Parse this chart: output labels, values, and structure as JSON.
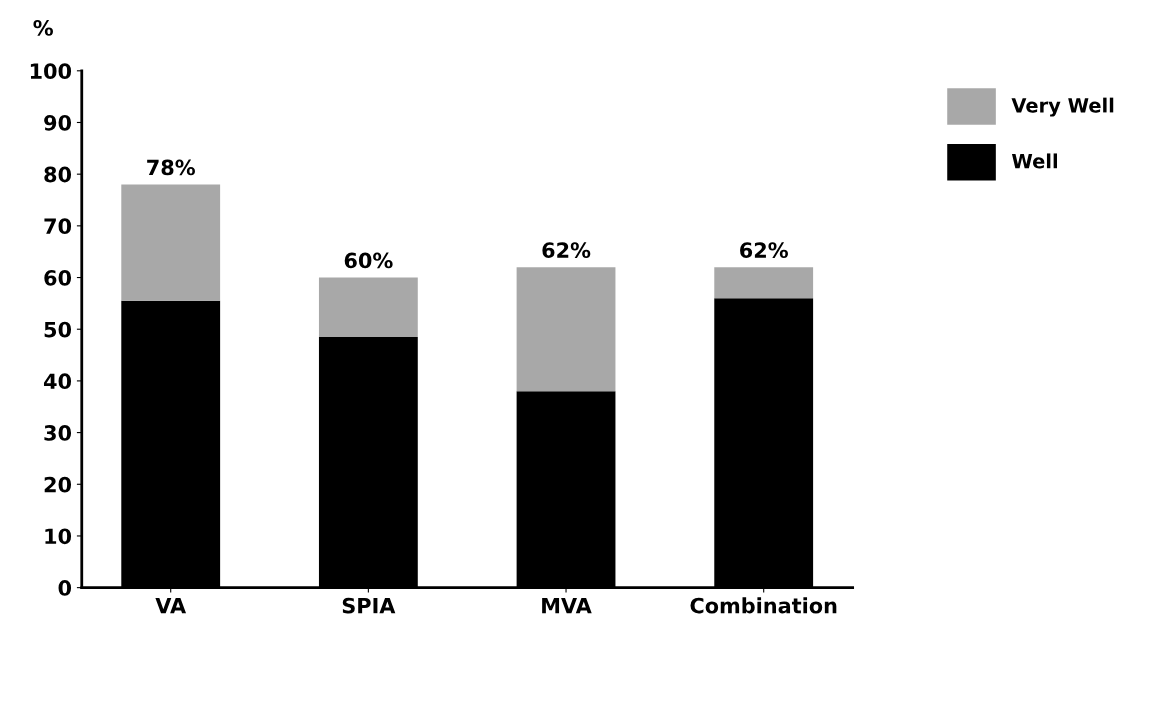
{
  "chart_data": {
    "type": "bar",
    "stacked": true,
    "ylabel": "%",
    "categories": [
      "VA",
      "SPIA",
      "MVA",
      "Combination"
    ],
    "series": [
      {
        "name": "Well",
        "color": "#000000",
        "values": [
          55.5,
          48.5,
          38,
          56
        ]
      },
      {
        "name": "Very Well",
        "color": "#a8a8a8",
        "values": [
          22.5,
          11.5,
          24,
          6
        ]
      }
    ],
    "totals": [
      "78%",
      "60%",
      "62%",
      "62%"
    ],
    "ylim": [
      0,
      100
    ],
    "yticks": [
      0,
      10,
      20,
      30,
      40,
      50,
      60,
      70,
      80,
      90,
      100
    ],
    "grid": false,
    "legend": "top right"
  }
}
